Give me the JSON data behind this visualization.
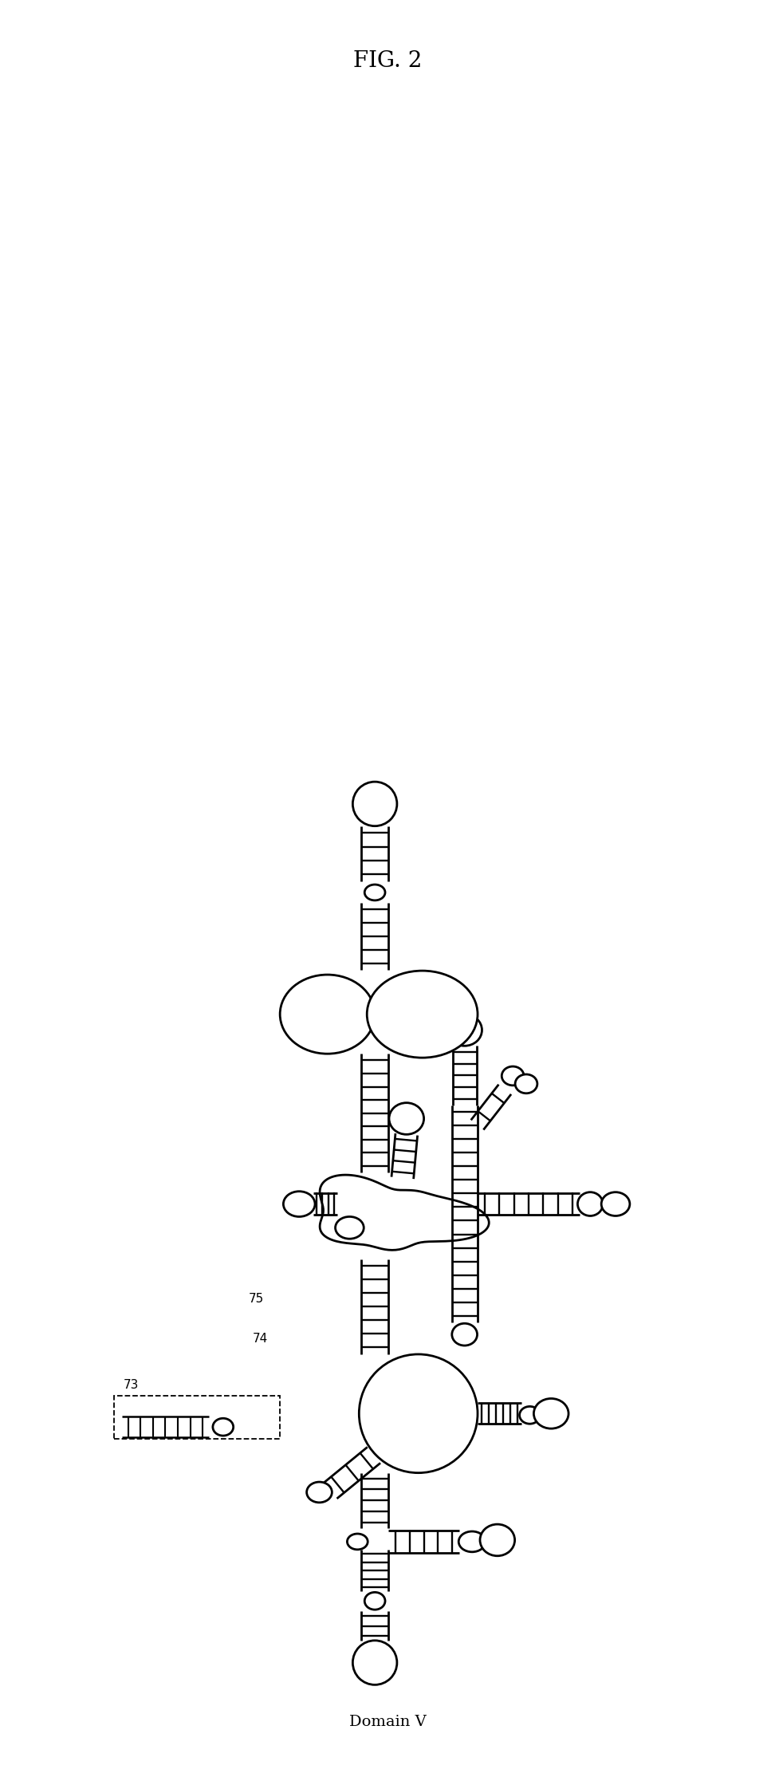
{
  "title": "FIG. 2",
  "bottom_label": "Domain V",
  "label_73": "73",
  "label_74": "74",
  "label_75": "75",
  "bg_color": "#ffffff",
  "line_color": "#000000",
  "lw": 2.0,
  "fig_w": 9.72,
  "fig_h": 22.28
}
